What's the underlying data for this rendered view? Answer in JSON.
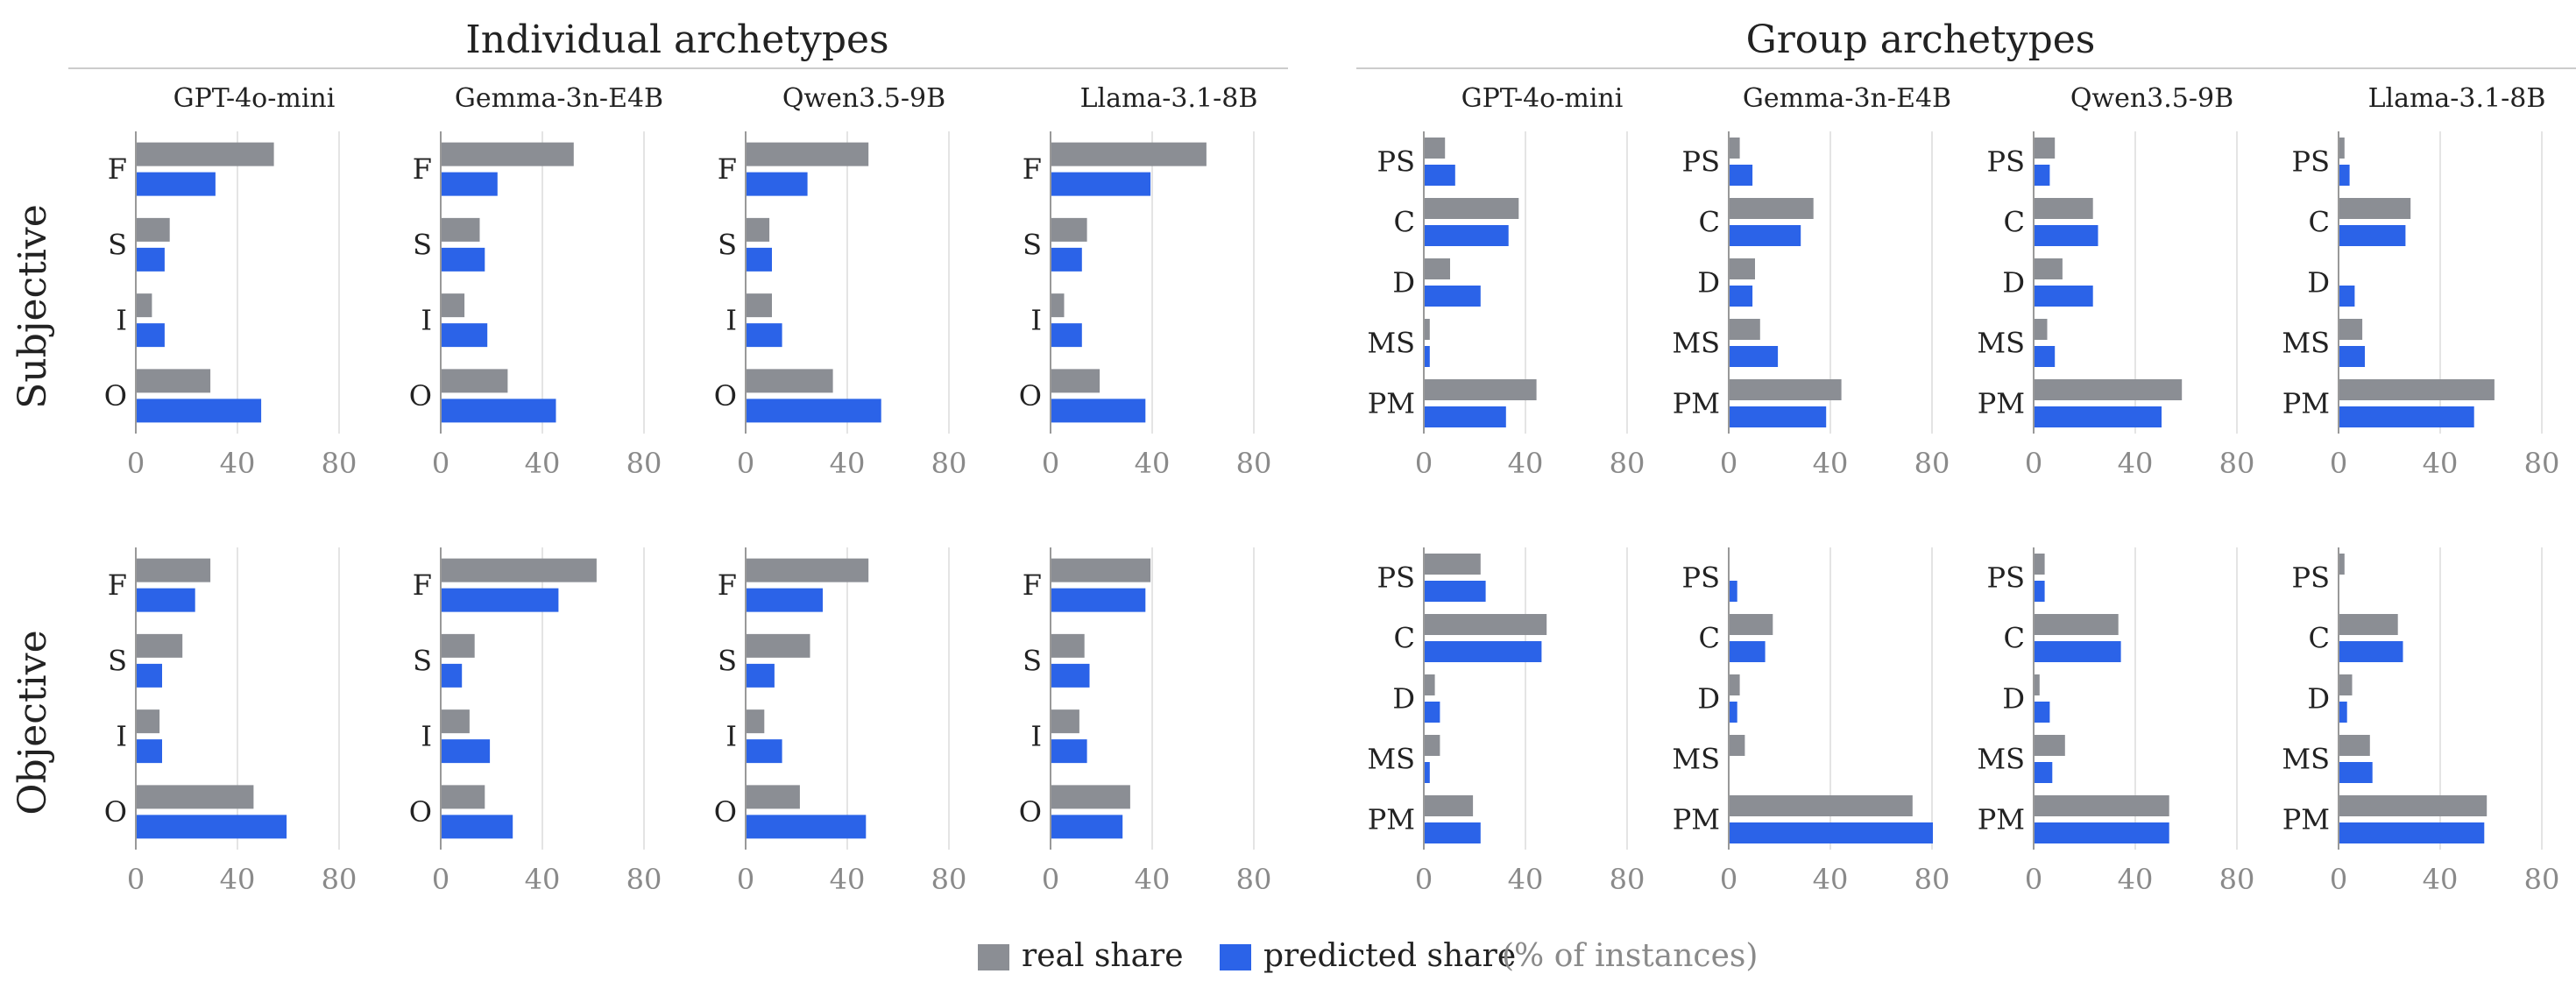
{
  "colors": {
    "real": "#8b8e94",
    "predicted": "#2b63e8",
    "grid": "#e4e4e4",
    "axis": "#999999",
    "tick_text": "#8a8a8a",
    "label_text": "#222222"
  },
  "group_titles": {
    "individual": "Individual archetypes",
    "group": "Group archetypes"
  },
  "row_labels": [
    "Subjective",
    "Objective"
  ],
  "models": [
    "GPT-4o-mini",
    "Gemma-3n-E4B",
    "Qwen3.5-9B",
    "Llama-3.1-8B"
  ],
  "legend": {
    "real": "real share",
    "predicted": "predicted share",
    "unit": "(% of instances)"
  },
  "chart_data": [
    {
      "type": "bar",
      "orientation": "horizontal",
      "group": "Individual archetypes",
      "row": "Subjective",
      "model": "GPT-4o-mini",
      "categories": [
        "F",
        "S",
        "I",
        "O"
      ],
      "series": [
        {
          "name": "real share",
          "values": [
            54,
            13,
            6,
            29
          ]
        },
        {
          "name": "predicted share",
          "values": [
            31,
            11,
            11,
            49
          ]
        }
      ],
      "xlim": [
        0,
        90
      ],
      "xticks": [
        0,
        40,
        80
      ]
    },
    {
      "type": "bar",
      "orientation": "horizontal",
      "group": "Individual archetypes",
      "row": "Subjective",
      "model": "Gemma-3n-E4B",
      "categories": [
        "F",
        "S",
        "I",
        "O"
      ],
      "series": [
        {
          "name": "real share",
          "values": [
            52,
            15,
            9,
            26
          ]
        },
        {
          "name": "predicted share",
          "values": [
            22,
            17,
            18,
            45
          ]
        }
      ],
      "xlim": [
        0,
        90
      ],
      "xticks": [
        0,
        40,
        80
      ]
    },
    {
      "type": "bar",
      "orientation": "horizontal",
      "group": "Individual archetypes",
      "row": "Subjective",
      "model": "Qwen3.5-9B",
      "categories": [
        "F",
        "S",
        "I",
        "O"
      ],
      "series": [
        {
          "name": "real share",
          "values": [
            48,
            9,
            10,
            34
          ]
        },
        {
          "name": "predicted share",
          "values": [
            24,
            10,
            14,
            53
          ]
        }
      ],
      "xlim": [
        0,
        90
      ],
      "xticks": [
        0,
        40,
        80
      ]
    },
    {
      "type": "bar",
      "orientation": "horizontal",
      "group": "Individual archetypes",
      "row": "Subjective",
      "model": "Llama-3.1-8B",
      "categories": [
        "F",
        "S",
        "I",
        "O"
      ],
      "series": [
        {
          "name": "real share",
          "values": [
            61,
            14,
            5,
            19
          ]
        },
        {
          "name": "predicted share",
          "values": [
            39,
            12,
            12,
            37
          ]
        }
      ],
      "xlim": [
        0,
        90
      ],
      "xticks": [
        0,
        40,
        80
      ]
    },
    {
      "type": "bar",
      "orientation": "horizontal",
      "group": "Individual archetypes",
      "row": "Objective",
      "model": "GPT-4o-mini",
      "categories": [
        "F",
        "S",
        "I",
        "O"
      ],
      "series": [
        {
          "name": "real share",
          "values": [
            29,
            18,
            9,
            46
          ]
        },
        {
          "name": "predicted share",
          "values": [
            23,
            10,
            10,
            59
          ]
        }
      ],
      "xlim": [
        0,
        90
      ],
      "xticks": [
        0,
        40,
        80
      ]
    },
    {
      "type": "bar",
      "orientation": "horizontal",
      "group": "Individual archetypes",
      "row": "Objective",
      "model": "Gemma-3n-E4B",
      "categories": [
        "F",
        "S",
        "I",
        "O"
      ],
      "series": [
        {
          "name": "real share",
          "values": [
            61,
            13,
            11,
            17
          ]
        },
        {
          "name": "predicted share",
          "values": [
            46,
            8,
            19,
            28
          ]
        }
      ],
      "xlim": [
        0,
        90
      ],
      "xticks": [
        0,
        40,
        80
      ]
    },
    {
      "type": "bar",
      "orientation": "horizontal",
      "group": "Individual archetypes",
      "row": "Objective",
      "model": "Qwen3.5-9B",
      "categories": [
        "F",
        "S",
        "I",
        "O"
      ],
      "series": [
        {
          "name": "real share",
          "values": [
            48,
            25,
            7,
            21
          ]
        },
        {
          "name": "predicted share",
          "values": [
            30,
            11,
            14,
            47
          ]
        }
      ],
      "xlim": [
        0,
        90
      ],
      "xticks": [
        0,
        40,
        80
      ]
    },
    {
      "type": "bar",
      "orientation": "horizontal",
      "group": "Individual archetypes",
      "row": "Objective",
      "model": "Llama-3.1-8B",
      "categories": [
        "F",
        "S",
        "I",
        "O"
      ],
      "series": [
        {
          "name": "real share",
          "values": [
            39,
            13,
            11,
            31
          ]
        },
        {
          "name": "predicted share",
          "values": [
            37,
            15,
            14,
            28
          ]
        }
      ],
      "xlim": [
        0,
        90
      ],
      "xticks": [
        0,
        40,
        80
      ]
    },
    {
      "type": "bar",
      "orientation": "horizontal",
      "group": "Group archetypes",
      "row": "Subjective",
      "model": "GPT-4o-mini",
      "categories": [
        "PS",
        "C",
        "D",
        "MS",
        "PM"
      ],
      "series": [
        {
          "name": "real share",
          "values": [
            8,
            37,
            10,
            2,
            44
          ]
        },
        {
          "name": "predicted share",
          "values": [
            12,
            33,
            22,
            2,
            32
          ]
        }
      ],
      "xlim": [
        0,
        90
      ],
      "xticks": [
        0,
        40,
        80
      ]
    },
    {
      "type": "bar",
      "orientation": "horizontal",
      "group": "Group archetypes",
      "row": "Subjective",
      "model": "Gemma-3n-E4B",
      "categories": [
        "PS",
        "C",
        "D",
        "MS",
        "PM"
      ],
      "series": [
        {
          "name": "real share",
          "values": [
            4,
            33,
            10,
            12,
            44
          ]
        },
        {
          "name": "predicted share",
          "values": [
            9,
            28,
            9,
            19,
            38
          ]
        }
      ],
      "xlim": [
        0,
        90
      ],
      "xticks": [
        0,
        40,
        80
      ]
    },
    {
      "type": "bar",
      "orientation": "horizontal",
      "group": "Group archetypes",
      "row": "Subjective",
      "model": "Qwen3.5-9B",
      "categories": [
        "PS",
        "C",
        "D",
        "MS",
        "PM"
      ],
      "series": [
        {
          "name": "real share",
          "values": [
            8,
            23,
            11,
            5,
            58
          ]
        },
        {
          "name": "predicted share",
          "values": [
            6,
            25,
            23,
            8,
            50
          ]
        }
      ],
      "xlim": [
        0,
        90
      ],
      "xticks": [
        0,
        40,
        80
      ]
    },
    {
      "type": "bar",
      "orientation": "horizontal",
      "group": "Group archetypes",
      "row": "Subjective",
      "model": "Llama-3.1-8B",
      "categories": [
        "PS",
        "C",
        "D",
        "MS",
        "PM"
      ],
      "series": [
        {
          "name": "real share",
          "values": [
            2,
            28,
            0,
            9,
            61
          ]
        },
        {
          "name": "predicted share",
          "values": [
            4,
            26,
            6,
            10,
            53
          ]
        }
      ],
      "xlim": [
        0,
        90
      ],
      "xticks": [
        0,
        40,
        80
      ]
    },
    {
      "type": "bar",
      "orientation": "horizontal",
      "group": "Group archetypes",
      "row": "Objective",
      "model": "GPT-4o-mini",
      "categories": [
        "PS",
        "C",
        "D",
        "MS",
        "PM"
      ],
      "series": [
        {
          "name": "real share",
          "values": [
            22,
            48,
            4,
            6,
            19
          ]
        },
        {
          "name": "predicted share",
          "values": [
            24,
            46,
            6,
            2,
            22
          ]
        }
      ],
      "xlim": [
        0,
        90
      ],
      "xticks": [
        0,
        40,
        80
      ]
    },
    {
      "type": "bar",
      "orientation": "horizontal",
      "group": "Group archetypes",
      "row": "Objective",
      "model": "Gemma-3n-E4B",
      "categories": [
        "PS",
        "C",
        "D",
        "MS",
        "PM"
      ],
      "series": [
        {
          "name": "real share",
          "values": [
            0,
            17,
            4,
            6,
            72
          ]
        },
        {
          "name": "predicted share",
          "values": [
            3,
            14,
            3,
            0,
            80
          ]
        }
      ],
      "xlim": [
        0,
        90
      ],
      "xticks": [
        0,
        40,
        80
      ]
    },
    {
      "type": "bar",
      "orientation": "horizontal",
      "group": "Group archetypes",
      "row": "Objective",
      "model": "Qwen3.5-9B",
      "categories": [
        "PS",
        "C",
        "D",
        "MS",
        "PM"
      ],
      "series": [
        {
          "name": "real share",
          "values": [
            4,
            33,
            2,
            12,
            53
          ]
        },
        {
          "name": "predicted share",
          "values": [
            4,
            34,
            6,
            7,
            53
          ]
        }
      ],
      "xlim": [
        0,
        90
      ],
      "xticks": [
        0,
        40,
        80
      ]
    },
    {
      "type": "bar",
      "orientation": "horizontal",
      "group": "Group archetypes",
      "row": "Objective",
      "model": "Llama-3.1-8B",
      "categories": [
        "PS",
        "C",
        "D",
        "MS",
        "PM"
      ],
      "series": [
        {
          "name": "real share",
          "values": [
            2,
            23,
            5,
            12,
            58
          ]
        },
        {
          "name": "predicted share",
          "values": [
            0,
            25,
            3,
            13,
            57
          ]
        }
      ],
      "xlim": [
        0,
        90
      ],
      "xticks": [
        0,
        40,
        80
      ]
    }
  ]
}
